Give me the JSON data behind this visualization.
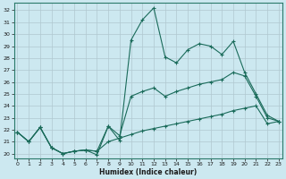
{
  "xlabel": "Humidex (Indice chaleur)",
  "bg_color": "#cce8f0",
  "grid_color": "#b0c8d0",
  "line_color": "#1a6b5a",
  "x_ticks": [
    0,
    1,
    2,
    3,
    4,
    5,
    6,
    7,
    8,
    9,
    10,
    11,
    12,
    13,
    14,
    15,
    16,
    17,
    18,
    19,
    20,
    21,
    22,
    23
  ],
  "y_ticks": [
    20,
    21,
    22,
    23,
    24,
    25,
    26,
    27,
    28,
    29,
    30,
    31,
    32
  ],
  "xlim": [
    -0.3,
    23.3
  ],
  "ylim": [
    19.6,
    32.6
  ],
  "series": {
    "line1": {
      "x": [
        0,
        1,
        2,
        3,
        4,
        5,
        6,
        7,
        8,
        9,
        10,
        11,
        12,
        13,
        14,
        15,
        16,
        17,
        18,
        19,
        20,
        21,
        22,
        23
      ],
      "y": [
        21.8,
        21.0,
        22.2,
        20.5,
        20.0,
        20.2,
        20.3,
        19.9,
        22.3,
        21.1,
        29.5,
        31.2,
        32.2,
        28.1,
        27.6,
        28.7,
        29.2,
        29.0,
        28.3,
        29.4,
        26.8,
        25.0,
        23.2,
        22.7
      ]
    },
    "line2": {
      "x": [
        0,
        1,
        2,
        3,
        4,
        5,
        6,
        7,
        8,
        9,
        10,
        11,
        12,
        13,
        14,
        15,
        16,
        17,
        18,
        19,
        20,
        21,
        22,
        23
      ],
      "y": [
        21.8,
        21.0,
        22.2,
        20.5,
        20.0,
        20.2,
        20.3,
        20.2,
        22.3,
        21.5,
        24.8,
        25.2,
        25.5,
        24.8,
        25.2,
        25.5,
        25.8,
        26.0,
        26.2,
        26.8,
        26.5,
        24.8,
        23.0,
        22.7
      ]
    },
    "line3": {
      "x": [
        0,
        1,
        2,
        3,
        4,
        5,
        6,
        7,
        8,
        9,
        10,
        11,
        12,
        13,
        14,
        15,
        16,
        17,
        18,
        19,
        20,
        21,
        22,
        23
      ],
      "y": [
        21.8,
        21.0,
        22.2,
        20.5,
        20.0,
        20.2,
        20.3,
        20.2,
        21.0,
        21.3,
        21.6,
        21.9,
        22.1,
        22.3,
        22.5,
        22.7,
        22.9,
        23.1,
        23.3,
        23.6,
        23.8,
        24.0,
        22.5,
        22.7
      ]
    }
  }
}
